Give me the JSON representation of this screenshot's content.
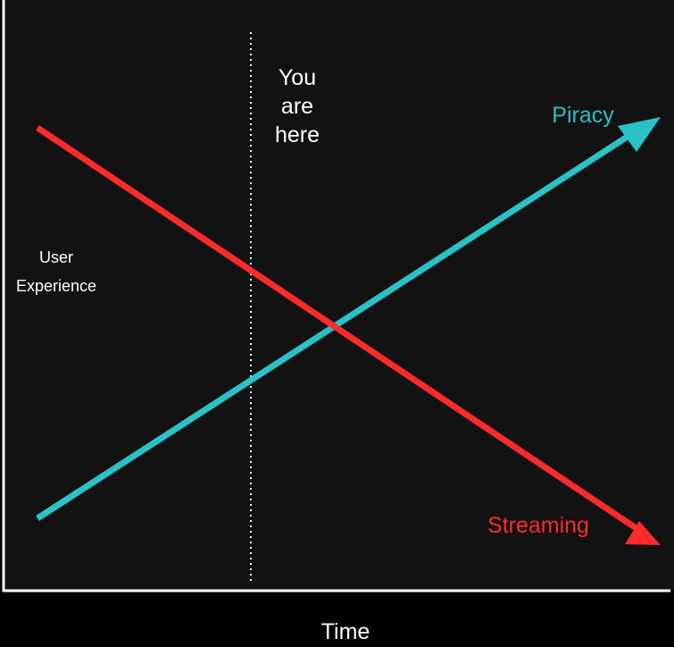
{
  "chart_data": {
    "type": "line",
    "title": "",
    "xlabel": "Time",
    "ylabel_lines": [
      "User",
      "Experience"
    ],
    "annotation": {
      "lines": [
        "You",
        "are",
        "here"
      ],
      "marker": "dotted vertical line"
    },
    "series": [
      {
        "name": "Piracy",
        "color": "#29c2c7",
        "trend": "increasing",
        "ends_with_arrow": true
      },
      {
        "name": "Streaming",
        "color": "#ff2a2a",
        "trend": "decreasing",
        "ends_with_arrow": true
      }
    ],
    "grid": false,
    "axis_ticks": false
  },
  "colors": {
    "page_background": "#000000",
    "plot_background": "#121212",
    "axis": "#ffffff",
    "text": "#ffffff"
  }
}
